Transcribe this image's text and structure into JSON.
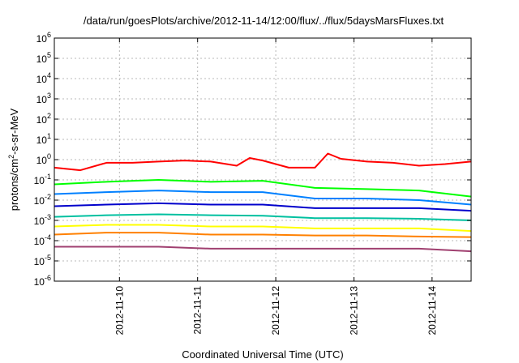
{
  "chart_data": {
    "type": "line",
    "title": "/data/run/goesPlots/archive/2012-11-14/12:00/flux/../flux/5daysMarsFluxes.txt",
    "xlabel": "Coordinated Universal Time (UTC)",
    "ylabel_parts": {
      "base": "protons/cm",
      "sup": "2",
      "rest": "-s-sr-MeV"
    },
    "yscale": "log",
    "ylim": [
      1e-06,
      1000000.0
    ],
    "xlim": [
      "2012-11-09 04:00",
      "2012-11-14 12:00"
    ],
    "y_ticks": [
      {
        "value": 1e-06,
        "base": "10",
        "exp": "-6"
      },
      {
        "value": 1e-05,
        "base": "10",
        "exp": "-5"
      },
      {
        "value": 0.0001,
        "base": "10",
        "exp": "-4"
      },
      {
        "value": 0.001,
        "base": "10",
        "exp": "-3"
      },
      {
        "value": 0.01,
        "base": "10",
        "exp": "-2"
      },
      {
        "value": 0.1,
        "base": "10",
        "exp": "-1"
      },
      {
        "value": 1,
        "base": "10",
        "exp": "0"
      },
      {
        "value": 10.0,
        "base": "10",
        "exp": "1"
      },
      {
        "value": 100.0,
        "base": "10",
        "exp": "2"
      },
      {
        "value": 1000.0,
        "base": "10",
        "exp": "3"
      },
      {
        "value": 10000.0,
        "base": "10",
        "exp": "4"
      },
      {
        "value": 100000.0,
        "base": "10",
        "exp": "5"
      },
      {
        "value": 1000000.0,
        "base": "10",
        "exp": "6"
      }
    ],
    "x_ticks": [
      {
        "date": "2012-11-10 00:00",
        "label": "2012-11-10"
      },
      {
        "date": "2012-11-11 00:00",
        "label": "2012-11-11"
      },
      {
        "date": "2012-11-12 00:00",
        "label": "2012-11-12"
      },
      {
        "date": "2012-11-13 00:00",
        "label": "2012-11-13"
      },
      {
        "date": "2012-11-14 00:00",
        "label": "2012-11-14"
      }
    ],
    "grid": true,
    "series_colors": [
      "#ff0000",
      "#00ff00",
      "#0080ff",
      "#0000cc",
      "#00c0a0",
      "#ffff00",
      "#ff8000",
      "#a04070"
    ],
    "series": [
      {
        "x": [
          "2012-11-09 04:00",
          "2012-11-09 12:00",
          "2012-11-09 20:00",
          "2012-11-10 04:00",
          "2012-11-10 12:00",
          "2012-11-10 20:00",
          "2012-11-11 04:00",
          "2012-11-11 12:00",
          "2012-11-11 16:00",
          "2012-11-11 20:00",
          "2012-11-12 04:00",
          "2012-11-12 12:00",
          "2012-11-12 16:00",
          "2012-11-12 20:00",
          "2012-11-13 04:00",
          "2012-11-13 12:00",
          "2012-11-13 20:00",
          "2012-11-14 04:00",
          "2012-11-14 12:00"
        ],
        "values": [
          0.4,
          0.3,
          0.7,
          0.7,
          0.8,
          0.9,
          0.8,
          0.5,
          1.2,
          0.9,
          0.4,
          0.4,
          2.0,
          1.1,
          0.8,
          0.7,
          0.5,
          0.6,
          0.8
        ]
      },
      {
        "x": [
          "2012-11-09 04:00",
          "2012-11-09 20:00",
          "2012-11-10 12:00",
          "2012-11-11 04:00",
          "2012-11-11 20:00",
          "2012-11-12 12:00",
          "2012-11-13 04:00",
          "2012-11-13 20:00",
          "2012-11-14 12:00"
        ],
        "values": [
          0.06,
          0.08,
          0.1,
          0.08,
          0.09,
          0.04,
          0.035,
          0.03,
          0.015
        ]
      },
      {
        "x": [
          "2012-11-09 04:00",
          "2012-11-09 20:00",
          "2012-11-10 12:00",
          "2012-11-11 04:00",
          "2012-11-11 20:00",
          "2012-11-12 12:00",
          "2012-11-13 04:00",
          "2012-11-13 20:00",
          "2012-11-14 12:00"
        ],
        "values": [
          0.02,
          0.025,
          0.03,
          0.025,
          0.025,
          0.012,
          0.012,
          0.01,
          0.006
        ]
      },
      {
        "x": [
          "2012-11-09 04:00",
          "2012-11-09 20:00",
          "2012-11-10 12:00",
          "2012-11-11 04:00",
          "2012-11-11 20:00",
          "2012-11-12 12:00",
          "2012-11-13 04:00",
          "2012-11-13 20:00",
          "2012-11-14 12:00"
        ],
        "values": [
          0.005,
          0.006,
          0.007,
          0.006,
          0.006,
          0.004,
          0.004,
          0.004,
          0.003
        ]
      },
      {
        "x": [
          "2012-11-09 04:00",
          "2012-11-09 20:00",
          "2012-11-10 12:00",
          "2012-11-11 04:00",
          "2012-11-11 20:00",
          "2012-11-12 12:00",
          "2012-11-13 04:00",
          "2012-11-13 20:00",
          "2012-11-14 12:00"
        ],
        "values": [
          0.0015,
          0.0018,
          0.002,
          0.0018,
          0.0017,
          0.0013,
          0.0013,
          0.0012,
          0.001
        ]
      },
      {
        "x": [
          "2012-11-09 04:00",
          "2012-11-09 20:00",
          "2012-11-10 12:00",
          "2012-11-11 04:00",
          "2012-11-11 20:00",
          "2012-11-12 12:00",
          "2012-11-13 04:00",
          "2012-11-13 20:00",
          "2012-11-14 12:00"
        ],
        "values": [
          0.0005,
          0.0006,
          0.0006,
          0.0005,
          0.0005,
          0.0004,
          0.0004,
          0.0004,
          0.0003
        ]
      },
      {
        "x": [
          "2012-11-09 04:00",
          "2012-11-09 20:00",
          "2012-11-10 12:00",
          "2012-11-11 04:00",
          "2012-11-11 20:00",
          "2012-11-12 12:00",
          "2012-11-13 04:00",
          "2012-11-13 20:00",
          "2012-11-14 12:00"
        ],
        "values": [
          0.0002,
          0.00025,
          0.00025,
          0.0002,
          0.0002,
          0.00018,
          0.00018,
          0.00016,
          0.00015
        ]
      },
      {
        "x": [
          "2012-11-09 04:00",
          "2012-11-09 20:00",
          "2012-11-10 12:00",
          "2012-11-11 04:00",
          "2012-11-11 20:00",
          "2012-11-12 12:00",
          "2012-11-13 04:00",
          "2012-11-13 20:00",
          "2012-11-14 12:00"
        ],
        "values": [
          5e-05,
          5e-05,
          5e-05,
          4e-05,
          4e-05,
          4e-05,
          4e-05,
          4e-05,
          3e-05
        ]
      }
    ]
  }
}
